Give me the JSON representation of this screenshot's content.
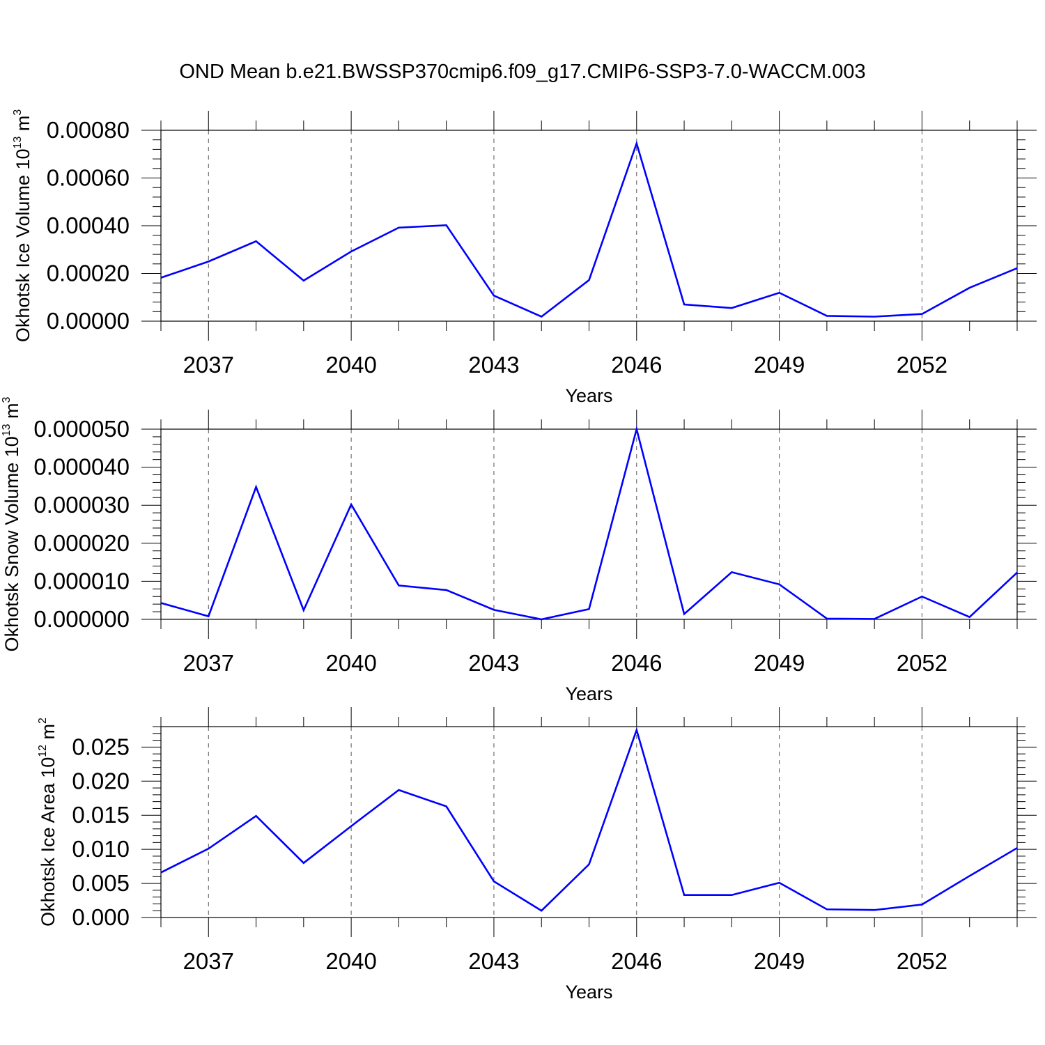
{
  "title": "OND Mean b.e21.BWSSP370cmip6.f09_g17.CMIP6-SSP3-7.0-WACCM.003",
  "chart_data": [
    {
      "type": "line",
      "xlabel": "Years",
      "ylabel": {
        "main": "Okhotsk Ice Volume 10",
        "exp": "13",
        "unit": " m",
        "unit_exp": "3"
      },
      "x": [
        2036,
        2037,
        2038,
        2039,
        2040,
        2041,
        2042,
        2043,
        2044,
        2045,
        2046,
        2047,
        2048,
        2049,
        2050,
        2051,
        2052,
        2053,
        2054
      ],
      "xlim": [
        2036,
        2054
      ],
      "xticks": [
        2037,
        2040,
        2043,
        2046,
        2049,
        2052
      ],
      "xtick_labels": [
        "2037",
        "2040",
        "2043",
        "2046",
        "2049",
        "2052"
      ],
      "ylim": [
        0,
        0.0008
      ],
      "yticks": [
        0,
        0.0002,
        0.0004,
        0.0006,
        0.0008
      ],
      "ytick_labels": [
        "0.00000",
        "0.00020",
        "0.00040",
        "0.00060",
        "0.00080"
      ],
      "series": [
        {
          "color": "#0000ff",
          "values": [
            0.000182,
            0.00025,
            0.000335,
            0.00017,
            0.000292,
            0.000392,
            0.000402,
            0.000107,
            1.9e-05,
            0.000172,
            0.000745,
            7e-05,
            5.5e-05,
            0.000119,
            2.2e-05,
            1.9e-05,
            3e-05,
            0.00014,
            0.000222
          ]
        }
      ],
      "grid": "dashed vertical lines at major x ticks"
    },
    {
      "type": "line",
      "xlabel": "Years",
      "ylabel": {
        "main": "Okhotsk Snow Volume 10",
        "exp": "13",
        "unit": " m",
        "unit_exp": "3"
      },
      "x": [
        2036,
        2037,
        2038,
        2039,
        2040,
        2041,
        2042,
        2043,
        2044,
        2045,
        2046,
        2047,
        2048,
        2049,
        2050,
        2051,
        2052,
        2053,
        2054
      ],
      "xlim": [
        2036,
        2054
      ],
      "xticks": [
        2037,
        2040,
        2043,
        2046,
        2049,
        2052
      ],
      "xtick_labels": [
        "2037",
        "2040",
        "2043",
        "2046",
        "2049",
        "2052"
      ],
      "ylim": [
        0,
        5e-05
      ],
      "yticks": [
        0,
        1e-05,
        2e-05,
        3e-05,
        4e-05,
        5e-05
      ],
      "ytick_labels": [
        "0.000000",
        "0.000010",
        "0.000020",
        "0.000030",
        "0.000040",
        "0.000050"
      ],
      "series": [
        {
          "color": "#0000ff",
          "values": [
            4.3e-06,
            8e-07,
            3.48e-05,
            2.4e-06,
            3.02e-05,
            8.9e-06,
            7.7e-06,
            2.5e-06,
            0.0,
            2.7e-06,
            5e-05,
            1.4e-06,
            1.24e-05,
            9.2e-06,
            2e-07,
            1e-07,
            6e-06,
            6e-07,
            1.23e-05
          ]
        }
      ],
      "grid": "dashed vertical lines at major x ticks"
    },
    {
      "type": "line",
      "xlabel": "Years",
      "ylabel": {
        "main": "Okhotsk Ice Area 10",
        "exp": "12",
        "unit": " m",
        "unit_exp": "2"
      },
      "x": [
        2036,
        2037,
        2038,
        2039,
        2040,
        2041,
        2042,
        2043,
        2044,
        2045,
        2046,
        2047,
        2048,
        2049,
        2050,
        2051,
        2052,
        2053,
        2054
      ],
      "xlim": [
        2036,
        2054
      ],
      "xticks": [
        2037,
        2040,
        2043,
        2046,
        2049,
        2052
      ],
      "xtick_labels": [
        "2037",
        "2040",
        "2043",
        "2046",
        "2049",
        "2052"
      ],
      "ylim": [
        0,
        0.028
      ],
      "yticks": [
        0,
        0.005,
        0.01,
        0.015,
        0.02,
        0.025
      ],
      "ytick_labels": [
        "0.000",
        "0.005",
        "0.010",
        "0.015",
        "0.020",
        "0.025"
      ],
      "series": [
        {
          "color": "#0000ff",
          "values": [
            0.0066,
            0.0101,
            0.0149,
            0.008,
            0.0134,
            0.0187,
            0.0163,
            0.0053,
            0.001,
            0.0078,
            0.0275,
            0.0033,
            0.0033,
            0.0051,
            0.0012,
            0.0011,
            0.0019,
            0.0061,
            0.0102
          ]
        }
      ],
      "grid": "dashed vertical lines at major x ticks"
    }
  ]
}
